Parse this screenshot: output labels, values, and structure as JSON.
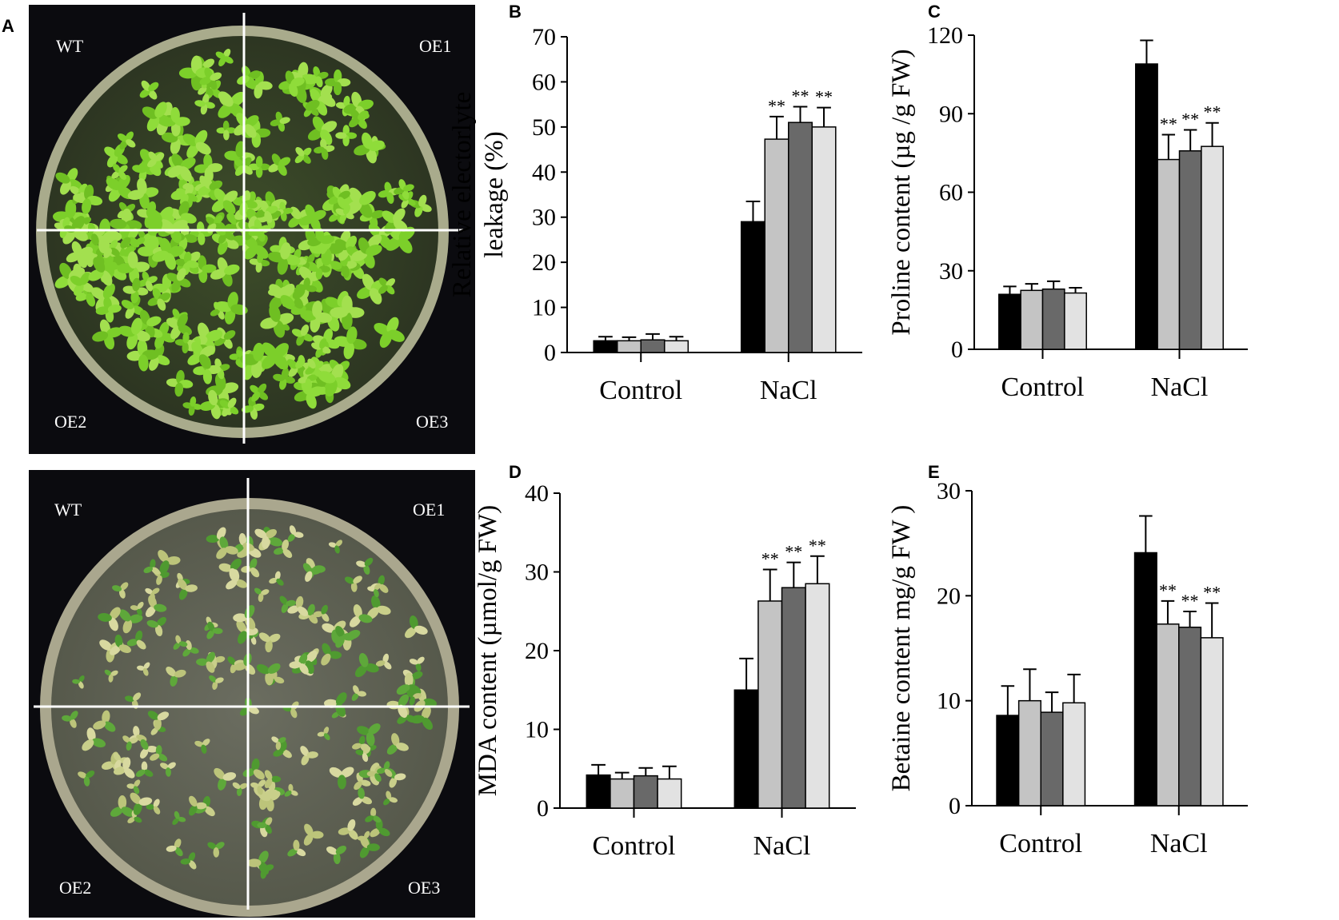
{
  "panels": {
    "A": {
      "label": "A",
      "quadrants": [
        "WT",
        "OE1",
        "OE2",
        "OE3"
      ]
    },
    "B": "B",
    "C": "C",
    "D": "D",
    "E": "E"
  },
  "colors": {
    "WT": "#000000",
    "OE1": "#c4c4c4",
    "OE2": "#696969",
    "OE3": "#e2e2e2"
  },
  "chart_data": [
    {
      "id": "B",
      "type": "bar",
      "ylabel": [
        "Relative electorlyte",
        "leakage (%)"
      ],
      "categories": [
        "Control",
        "NaCl"
      ],
      "ylim": [
        0,
        70
      ],
      "yticks": [
        0,
        10,
        20,
        30,
        40,
        50,
        60,
        70
      ],
      "series": [
        {
          "name": "WT",
          "values": [
            2.6,
            29
          ],
          "errors": [
            0.9,
            4.5
          ],
          "sig": [
            "",
            ""
          ]
        },
        {
          "name": "OE1",
          "values": [
            2.6,
            47.3
          ],
          "errors": [
            0.8,
            5
          ],
          "sig": [
            "",
            "**"
          ]
        },
        {
          "name": "OE2",
          "values": [
            2.8,
            51
          ],
          "errors": [
            1.3,
            3.5
          ],
          "sig": [
            "",
            "**"
          ]
        },
        {
          "name": "OE3",
          "values": [
            2.6,
            50
          ],
          "errors": [
            0.9,
            4.3
          ],
          "sig": [
            "",
            "**"
          ]
        }
      ]
    },
    {
      "id": "C",
      "type": "bar",
      "ylabel": [
        "Proline content (µg /g FW)"
      ],
      "categories": [
        "Control",
        "NaCl"
      ],
      "ylim": [
        0,
        120
      ],
      "yticks": [
        0,
        30,
        60,
        90,
        120
      ],
      "series": [
        {
          "name": "WT",
          "values": [
            21,
            109
          ],
          "errors": [
            3,
            9
          ],
          "sig": [
            "",
            ""
          ]
        },
        {
          "name": "OE1",
          "values": [
            22.5,
            72.5
          ],
          "errors": [
            2.5,
            9.5
          ],
          "sig": [
            "",
            "**"
          ]
        },
        {
          "name": "OE2",
          "values": [
            23,
            75.8
          ],
          "errors": [
            3,
            8
          ],
          "sig": [
            "",
            "**"
          ]
        },
        {
          "name": "OE3",
          "values": [
            21.5,
            77.5
          ],
          "errors": [
            2,
            9
          ],
          "sig": [
            "",
            "**"
          ]
        }
      ]
    },
    {
      "id": "D",
      "type": "bar",
      "ylabel": [
        "MDA content (µmol/g FW)"
      ],
      "categories": [
        "Control",
        "NaCl"
      ],
      "ylim": [
        0,
        40
      ],
      "yticks": [
        0,
        10,
        20,
        30,
        40
      ],
      "series": [
        {
          "name": "WT",
          "values": [
            4.2,
            15
          ],
          "errors": [
            1.3,
            4
          ],
          "sig": [
            "",
            ""
          ]
        },
        {
          "name": "OE1",
          "values": [
            3.7,
            26.3
          ],
          "errors": [
            0.8,
            4
          ],
          "sig": [
            "",
            "**"
          ]
        },
        {
          "name": "OE2",
          "values": [
            4.1,
            28
          ],
          "errors": [
            1,
            3.2
          ],
          "sig": [
            "",
            "**"
          ]
        },
        {
          "name": "OE3",
          "values": [
            3.7,
            28.5
          ],
          "errors": [
            1.6,
            3.5
          ],
          "sig": [
            "",
            "**"
          ]
        }
      ]
    },
    {
      "id": "E",
      "type": "bar",
      "ylabel": [
        "Betaine content mg/g FW )"
      ],
      "categories": [
        "Control",
        "NaCl"
      ],
      "ylim": [
        0,
        30
      ],
      "yticks": [
        0,
        10,
        20,
        30
      ],
      "series": [
        {
          "name": "WT",
          "values": [
            8.6,
            24.1
          ],
          "errors": [
            2.8,
            3.5
          ],
          "sig": [
            "",
            ""
          ]
        },
        {
          "name": "OE1",
          "values": [
            10,
            17.3
          ],
          "errors": [
            3,
            2.2
          ],
          "sig": [
            "",
            "**"
          ]
        },
        {
          "name": "OE2",
          "values": [
            8.9,
            17
          ],
          "errors": [
            1.9,
            1.5
          ],
          "sig": [
            "",
            "**"
          ]
        },
        {
          "name": "OE3",
          "values": [
            9.8,
            16
          ],
          "errors": [
            2.7,
            3.3
          ],
          "sig": [
            "",
            "**"
          ]
        }
      ]
    }
  ]
}
